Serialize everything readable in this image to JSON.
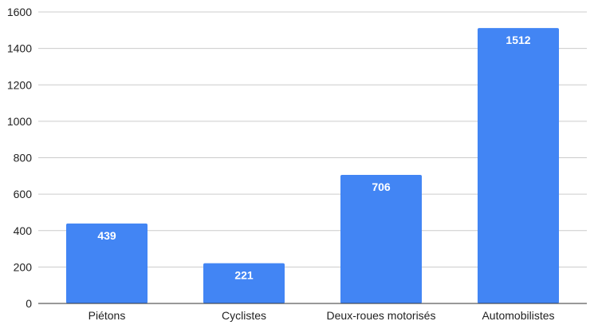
{
  "chart_data": {
    "type": "bar",
    "title": "",
    "xlabel": "",
    "ylabel": "",
    "categories": [
      "Piétons",
      "Cyclistes",
      "Deux-roues motorisés",
      "Automobilistes"
    ],
    "values": [
      439,
      221,
      706,
      1512
    ],
    "ylim": [
      0,
      1600
    ],
    "yticks": [
      0,
      200,
      400,
      600,
      800,
      1000,
      1200,
      1400,
      1600
    ],
    "grid": true,
    "legend": "none",
    "data_labels": true,
    "bar_color": "#4285f4"
  }
}
